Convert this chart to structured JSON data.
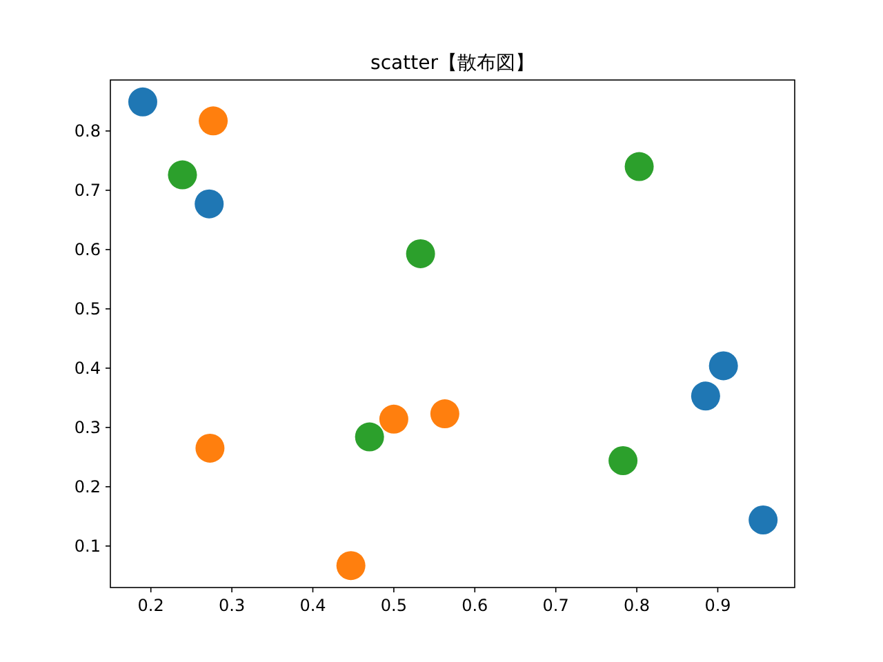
{
  "chart_data": {
    "type": "scatter",
    "title": "scatter【散布図】",
    "xlim": [
      0.15,
      0.995
    ],
    "ylim": [
      0.03,
      0.886
    ],
    "xticks": [
      0.2,
      0.3,
      0.4,
      0.5,
      0.6,
      0.7,
      0.8,
      0.9
    ],
    "yticks": [
      0.1,
      0.2,
      0.3,
      0.4,
      0.5,
      0.6,
      0.7,
      0.8
    ],
    "marker": "circle",
    "series": [
      {
        "color": "#1f77b4",
        "x": [
          0.19,
          0.272,
          0.907,
          0.885,
          0.956
        ],
        "values": [
          0.849,
          0.677,
          0.404,
          0.353,
          0.144
        ]
      },
      {
        "color": "#ff7f0e",
        "x": [
          0.277,
          0.273,
          0.447,
          0.5,
          0.563
        ],
        "values": [
          0.817,
          0.265,
          0.067,
          0.314,
          0.323
        ]
      },
      {
        "color": "#2ca02c",
        "x": [
          0.239,
          0.803,
          0.533,
          0.47,
          0.783
        ],
        "values": [
          0.726,
          0.74,
          0.593,
          0.284,
          0.244
        ]
      }
    ]
  }
}
